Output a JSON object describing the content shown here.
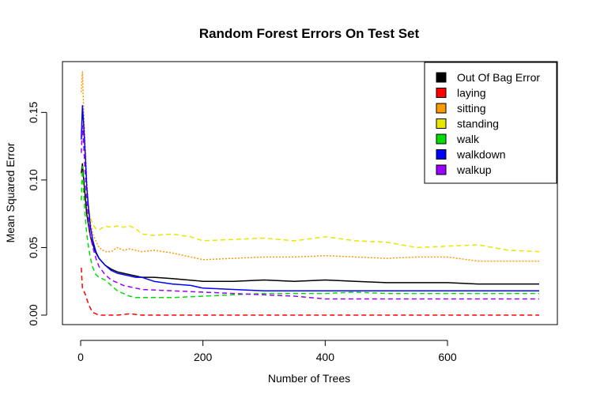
{
  "chart_data": {
    "type": "line",
    "title": "Random Forest Errors On Test Set",
    "xlabel": "Number of Trees",
    "ylabel": "Mean Squared Error",
    "xlim": [
      0,
      750
    ],
    "ylim": [
      0,
      0.18
    ],
    "x_ticks": [
      0,
      200,
      400,
      600
    ],
    "x_tick_labels": [
      "0",
      "200",
      "400",
      "600"
    ],
    "y_ticks": [
      0.0,
      0.05,
      0.1,
      0.15
    ],
    "y_tick_labels": [
      "0.00",
      "0.05",
      "0.10",
      "0.15"
    ],
    "grid": false,
    "legend_position": "top-right",
    "series": [
      {
        "name": "Out Of Bag Error",
        "color": "#000000",
        "dash": "solid",
        "points": [
          [
            1,
            0.105
          ],
          [
            3,
            0.112
          ],
          [
            5,
            0.1
          ],
          [
            8,
            0.085
          ],
          [
            10,
            0.075
          ],
          [
            13,
            0.066
          ],
          [
            16,
            0.058
          ],
          [
            20,
            0.052
          ],
          [
            25,
            0.046
          ],
          [
            30,
            0.042
          ],
          [
            40,
            0.037
          ],
          [
            50,
            0.034
          ],
          [
            60,
            0.032
          ],
          [
            70,
            0.031
          ],
          [
            80,
            0.03
          ],
          [
            90,
            0.029
          ],
          [
            100,
            0.028
          ],
          [
            120,
            0.028
          ],
          [
            150,
            0.027
          ],
          [
            200,
            0.025
          ],
          [
            250,
            0.025
          ],
          [
            300,
            0.026
          ],
          [
            350,
            0.025
          ],
          [
            400,
            0.026
          ],
          [
            450,
            0.025
          ],
          [
            500,
            0.024
          ],
          [
            550,
            0.024
          ],
          [
            600,
            0.024
          ],
          [
            650,
            0.023
          ],
          [
            700,
            0.023
          ],
          [
            750,
            0.023
          ]
        ]
      },
      {
        "name": "laying",
        "color": "#ff0000",
        "dash": "dashed",
        "points": [
          [
            1,
            0.035
          ],
          [
            3,
            0.02
          ],
          [
            5,
            0.018
          ],
          [
            8,
            0.015
          ],
          [
            10,
            0.012
          ],
          [
            13,
            0.008
          ],
          [
            16,
            0.005
          ],
          [
            20,
            0.002
          ],
          [
            25,
            0.001
          ],
          [
            30,
            0.0
          ],
          [
            60,
            0.0
          ],
          [
            80,
            0.001
          ],
          [
            100,
            0.0
          ],
          [
            200,
            0.0
          ],
          [
            400,
            0.0
          ],
          [
            600,
            0.0
          ],
          [
            750,
            0.0
          ]
        ]
      },
      {
        "name": "sitting",
        "color": "#ff9900",
        "dash": "dotted",
        "points": [
          [
            1,
            0.165
          ],
          [
            3,
            0.18
          ],
          [
            5,
            0.15
          ],
          [
            8,
            0.12
          ],
          [
            10,
            0.1
          ],
          [
            13,
            0.08
          ],
          [
            16,
            0.068
          ],
          [
            20,
            0.06
          ],
          [
            25,
            0.055
          ],
          [
            30,
            0.05
          ],
          [
            40,
            0.047
          ],
          [
            50,
            0.047
          ],
          [
            60,
            0.05
          ],
          [
            70,
            0.048
          ],
          [
            80,
            0.049
          ],
          [
            90,
            0.048
          ],
          [
            100,
            0.047
          ],
          [
            120,
            0.048
          ],
          [
            150,
            0.046
          ],
          [
            180,
            0.043
          ],
          [
            200,
            0.041
          ],
          [
            250,
            0.042
          ],
          [
            300,
            0.043
          ],
          [
            350,
            0.043
          ],
          [
            400,
            0.044
          ],
          [
            450,
            0.043
          ],
          [
            500,
            0.042
          ],
          [
            550,
            0.043
          ],
          [
            600,
            0.043
          ],
          [
            650,
            0.04
          ],
          [
            700,
            0.04
          ],
          [
            750,
            0.04
          ]
        ]
      },
      {
        "name": "standing",
        "color": "#e6e600",
        "dash": "dashed",
        "points": [
          [
            1,
            0.135
          ],
          [
            3,
            0.15
          ],
          [
            5,
            0.13
          ],
          [
            8,
            0.11
          ],
          [
            10,
            0.095
          ],
          [
            13,
            0.08
          ],
          [
            16,
            0.072
          ],
          [
            20,
            0.067
          ],
          [
            25,
            0.064
          ],
          [
            30,
            0.063
          ],
          [
            40,
            0.066
          ],
          [
            50,
            0.065
          ],
          [
            60,
            0.066
          ],
          [
            70,
            0.065
          ],
          [
            80,
            0.066
          ],
          [
            90,
            0.064
          ],
          [
            100,
            0.06
          ],
          [
            120,
            0.059
          ],
          [
            150,
            0.06
          ],
          [
            180,
            0.058
          ],
          [
            200,
            0.055
          ],
          [
            250,
            0.056
          ],
          [
            300,
            0.057
          ],
          [
            350,
            0.055
          ],
          [
            400,
            0.058
          ],
          [
            450,
            0.055
          ],
          [
            500,
            0.054
          ],
          [
            550,
            0.05
          ],
          [
            600,
            0.051
          ],
          [
            650,
            0.052
          ],
          [
            700,
            0.048
          ],
          [
            750,
            0.047
          ]
        ]
      },
      {
        "name": "walk",
        "color": "#00dd00",
        "dash": "dashed",
        "points": [
          [
            1,
            0.085
          ],
          [
            3,
            0.11
          ],
          [
            5,
            0.09
          ],
          [
            8,
            0.07
          ],
          [
            10,
            0.06
          ],
          [
            13,
            0.05
          ],
          [
            16,
            0.042
          ],
          [
            20,
            0.035
          ],
          [
            25,
            0.03
          ],
          [
            30,
            0.028
          ],
          [
            40,
            0.026
          ],
          [
            50,
            0.022
          ],
          [
            60,
            0.018
          ],
          [
            70,
            0.016
          ],
          [
            80,
            0.014
          ],
          [
            90,
            0.013
          ],
          [
            100,
            0.013
          ],
          [
            150,
            0.013
          ],
          [
            200,
            0.014
          ],
          [
            250,
            0.015
          ],
          [
            300,
            0.016
          ],
          [
            350,
            0.016
          ],
          [
            400,
            0.016
          ],
          [
            450,
            0.017
          ],
          [
            500,
            0.016
          ],
          [
            550,
            0.016
          ],
          [
            600,
            0.016
          ],
          [
            650,
            0.016
          ],
          [
            700,
            0.016
          ],
          [
            750,
            0.016
          ]
        ]
      },
      {
        "name": "walkdown",
        "color": "#0000ff",
        "dash": "solid",
        "points": [
          [
            1,
            0.13
          ],
          [
            3,
            0.155
          ],
          [
            5,
            0.14
          ],
          [
            8,
            0.115
          ],
          [
            10,
            0.095
          ],
          [
            13,
            0.078
          ],
          [
            16,
            0.065
          ],
          [
            20,
            0.055
          ],
          [
            25,
            0.047
          ],
          [
            30,
            0.042
          ],
          [
            40,
            0.037
          ],
          [
            50,
            0.033
          ],
          [
            60,
            0.031
          ],
          [
            70,
            0.03
          ],
          [
            80,
            0.029
          ],
          [
            90,
            0.028
          ],
          [
            100,
            0.028
          ],
          [
            120,
            0.025
          ],
          [
            150,
            0.023
          ],
          [
            180,
            0.022
          ],
          [
            200,
            0.02
          ],
          [
            250,
            0.019
          ],
          [
            300,
            0.018
          ],
          [
            350,
            0.018
          ],
          [
            400,
            0.018
          ],
          [
            450,
            0.018
          ],
          [
            500,
            0.018
          ],
          [
            550,
            0.018
          ],
          [
            600,
            0.018
          ],
          [
            650,
            0.018
          ],
          [
            700,
            0.018
          ],
          [
            750,
            0.018
          ]
        ]
      },
      {
        "name": "walkup",
        "color": "#9900ff",
        "dash": "dashed",
        "points": [
          [
            1,
            0.12
          ],
          [
            3,
            0.14
          ],
          [
            5,
            0.125
          ],
          [
            8,
            0.1
          ],
          [
            10,
            0.085
          ],
          [
            13,
            0.07
          ],
          [
            16,
            0.058
          ],
          [
            20,
            0.05
          ],
          [
            25,
            0.042
          ],
          [
            30,
            0.036
          ],
          [
            40,
            0.03
          ],
          [
            50,
            0.026
          ],
          [
            60,
            0.024
          ],
          [
            70,
            0.022
          ],
          [
            80,
            0.021
          ],
          [
            90,
            0.02
          ],
          [
            100,
            0.019
          ],
          [
            150,
            0.018
          ],
          [
            200,
            0.017
          ],
          [
            250,
            0.016
          ],
          [
            300,
            0.015
          ],
          [
            350,
            0.014
          ],
          [
            400,
            0.012
          ],
          [
            450,
            0.012
          ],
          [
            500,
            0.012
          ],
          [
            550,
            0.012
          ],
          [
            600,
            0.012
          ],
          [
            650,
            0.012
          ],
          [
            700,
            0.012
          ],
          [
            750,
            0.012
          ]
        ]
      }
    ]
  }
}
